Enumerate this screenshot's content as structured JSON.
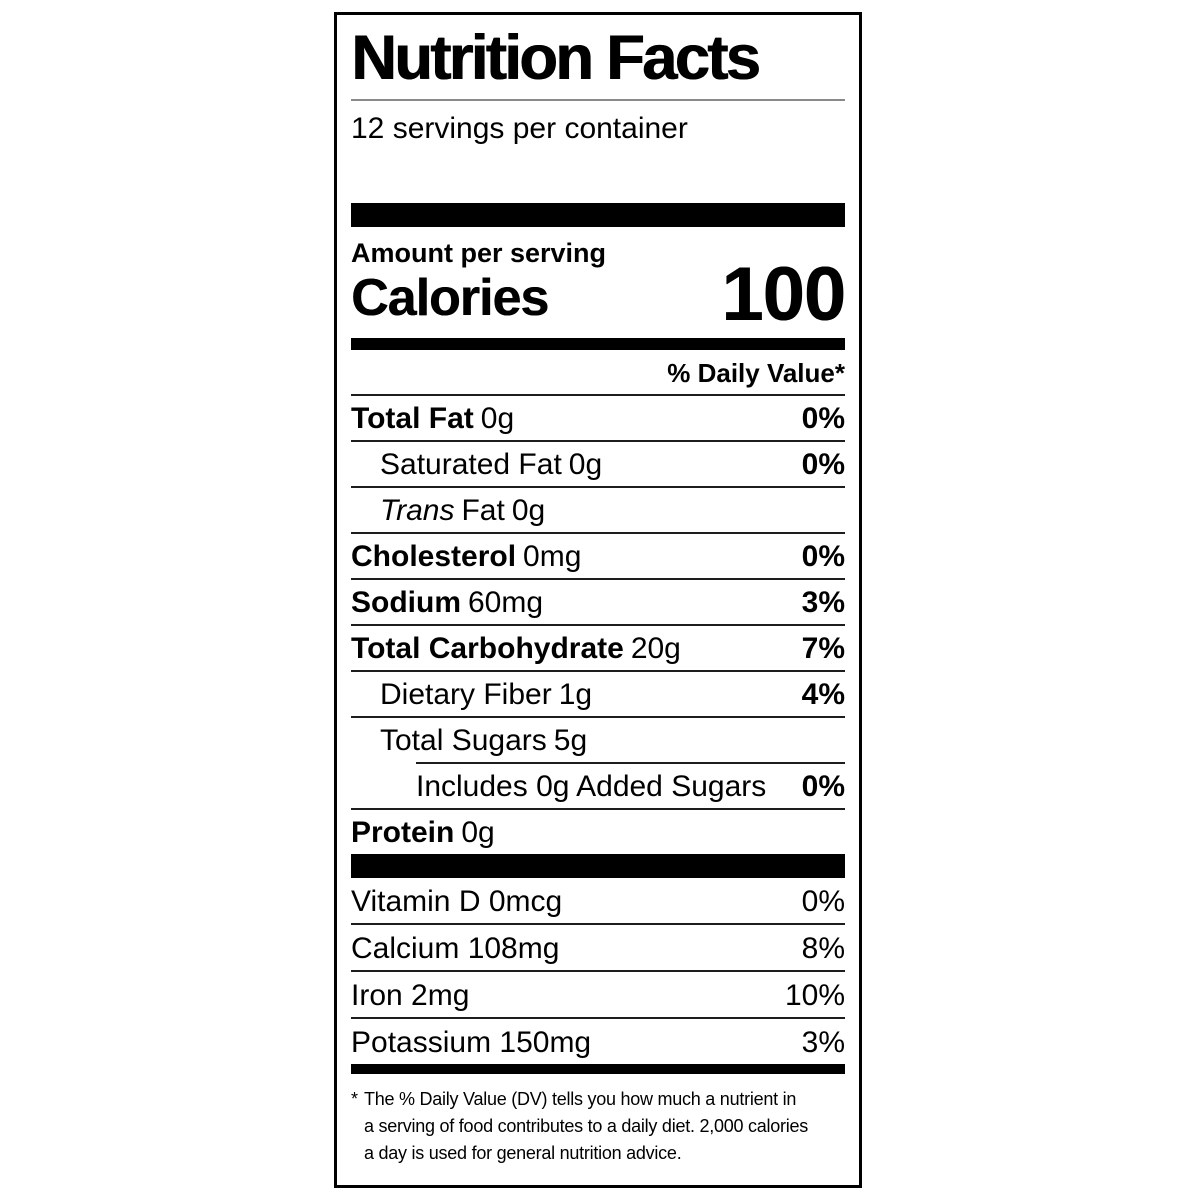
{
  "label": {
    "title": "Nutrition Facts",
    "servings_line": "12 servings per container",
    "amount_per_serving_label": "Amount per serving",
    "calories": {
      "label": "Calories",
      "value": "100"
    },
    "daily_value_header": "% Daily Value*",
    "rows": [
      {
        "name": "Total Fat",
        "amount": "0g",
        "dv": "0%"
      },
      {
        "name": "Saturated Fat",
        "amount": "0g",
        "dv": "0%"
      },
      {
        "name_italic": "Trans",
        "name_rest": "Fat",
        "amount": "0g",
        "dv": ""
      },
      {
        "name": "Cholesterol",
        "amount": "0mg",
        "dv": "0%"
      },
      {
        "name": "Sodium",
        "amount": "60mg",
        "dv": "3%"
      },
      {
        "name": "Total Carbohydrate",
        "amount": "20g",
        "dv": "7%"
      },
      {
        "name": "Dietary Fiber",
        "amount": "1g",
        "dv": "4%"
      },
      {
        "name": "Total Sugars",
        "amount": "5g",
        "dv": ""
      },
      {
        "name": "Includes 0g Added Sugars",
        "amount": "",
        "dv": "0%"
      },
      {
        "name": "Protein",
        "amount": "0g",
        "dv": ""
      }
    ],
    "micronutrients": [
      {
        "name": "Vitamin D 0mcg",
        "dv": "0%"
      },
      {
        "name": "Calcium 108mg",
        "dv": "8%"
      },
      {
        "name": "Iron 2mg",
        "dv": "10%"
      },
      {
        "name": "Potassium 150mg",
        "dv": "3%"
      }
    ],
    "footnote": {
      "marker": "*",
      "lines": [
        "The % Daily Value (DV) tells you how much a nutrient in",
        "a serving of food contributes to a daily diet. 2,000 calories",
        "a day is used for general nutrition advice."
      ]
    }
  },
  "colors": {
    "text": "#000000",
    "background": "#ffffff",
    "separator_dark": "#1d1d1d",
    "title_rule_gray": "#8a8a8a"
  }
}
